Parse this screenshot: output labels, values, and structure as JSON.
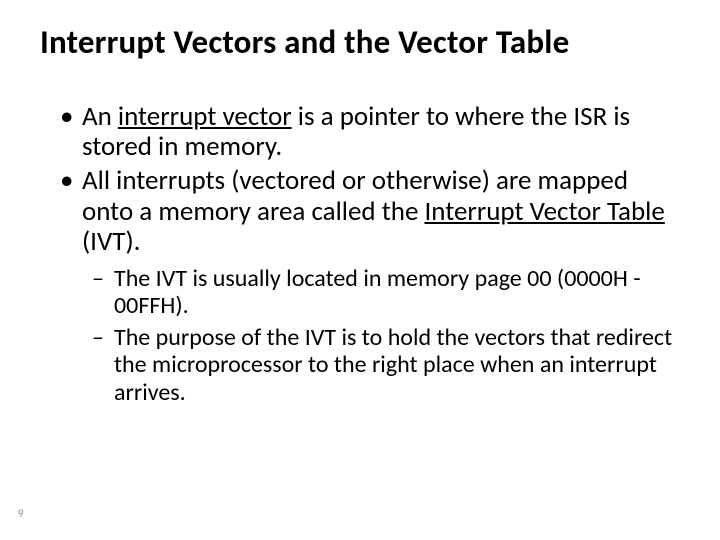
{
  "slide": {
    "title": "Interrupt Vectors and the Vector Table",
    "pageNumber": "9",
    "bullets": [
      {
        "pre": "An ",
        "ul": "interrupt vector",
        "post": " is a pointer to where the ISR is stored in memory."
      },
      {
        "pre": "All interrupts (vectored or otherwise) are mapped onto a memory area called the ",
        "ul": "Interrupt Vector Table",
        "post": " (IVT)."
      }
    ],
    "subbullets": [
      "The IVT is usually located in  memory page 00 (0000H - 00FFH).",
      "The purpose of the IVT is to hold the vectors that redirect the microprocessor to the right place when an interrupt arrives."
    ]
  },
  "style": {
    "background_color": "#ffffff",
    "text_color": "#000000",
    "title_fontsize": 33,
    "body_fontsize": 27,
    "sub_fontsize": 24,
    "pagenum_color": "#8a8a8a",
    "pagenum_fontsize": 11,
    "font_family": "Calibri"
  }
}
